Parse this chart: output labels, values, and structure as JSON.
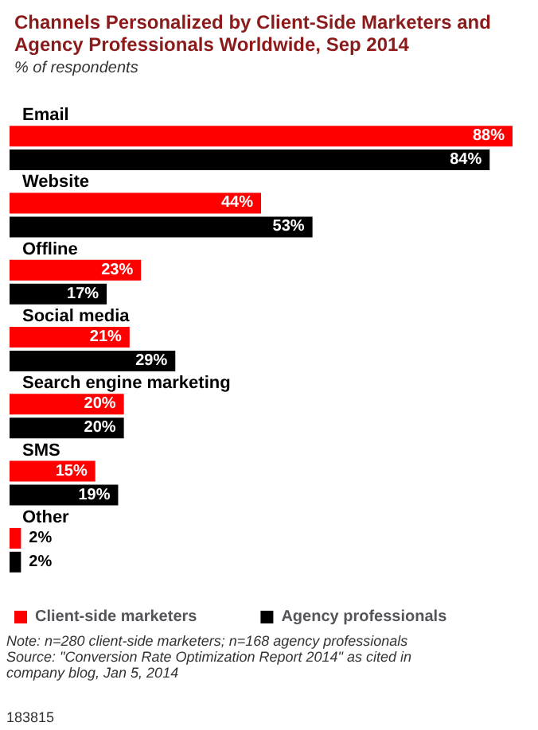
{
  "chart_data": {
    "type": "bar",
    "orientation": "horizontal",
    "title": "Channels Personalized by Client-Side Marketers and Agency Professionals Worldwide, Sep 2014",
    "subtitle": "% of respondents",
    "categories": [
      "Email",
      "Website",
      "Offline",
      "Social media",
      "Search engine marketing",
      "SMS",
      "Other"
    ],
    "series": [
      {
        "name": "Client-side marketers",
        "color": "#ff0000",
        "values": [
          88,
          44,
          23,
          21,
          20,
          15,
          2
        ],
        "value_labels": [
          "88%",
          "44%",
          "23%",
          "21%",
          "20%",
          "15%",
          "2%"
        ]
      },
      {
        "name": "Agency professionals",
        "color": "#000000",
        "values": [
          84,
          53,
          17,
          29,
          20,
          19,
          2
        ],
        "value_labels": [
          "84%",
          "53%",
          "17%",
          "29%",
          "20%",
          "19%",
          "2%"
        ]
      }
    ],
    "legend": "bottom left",
    "grid": false,
    "annotations": [
      "Note: n=280 client-side marketers; n=168 agency professionals",
      "Source: \"Conversion Rate Optimization Report 2014\" as cited in company blog, Jan 5, 2014",
      "183815"
    ]
  }
}
